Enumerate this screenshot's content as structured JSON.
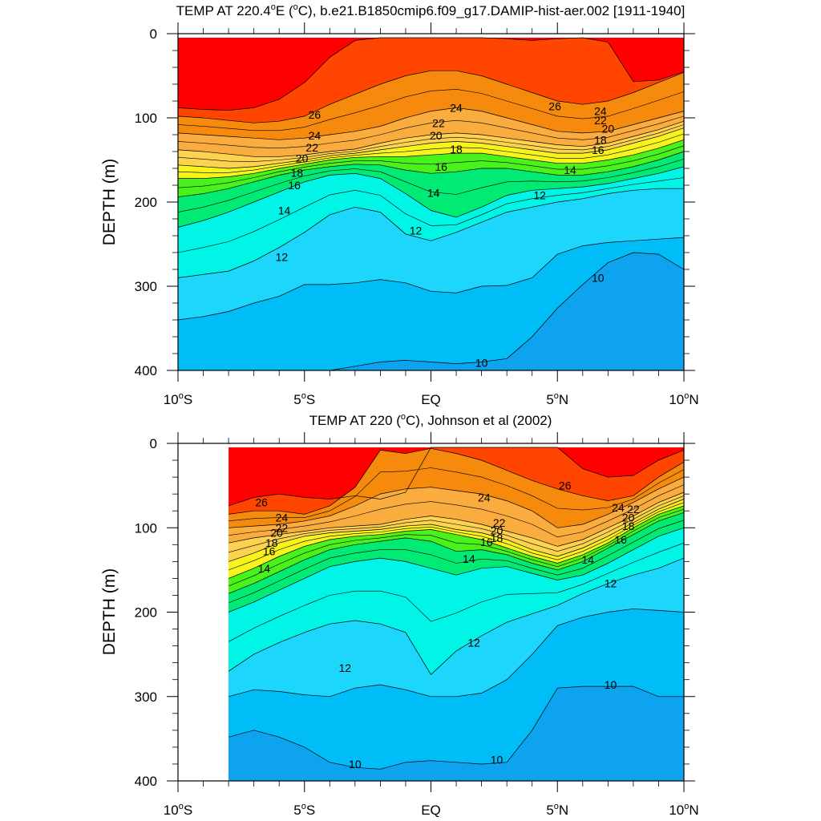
{
  "colors": {
    "c28": "#ff0000",
    "c27": "#ff4500",
    "c26": "#f58a0c",
    "c25": "#fa9a26",
    "c24": "#fbac3e",
    "c23": "#fcbf50",
    "c22": "#fdd24f",
    "c21": "#fde63c",
    "c20": "#f7f31c",
    "c19": "#c9f215",
    "c18": "#4af21c",
    "c17": "#0fdc1a",
    "c16": "#00ea74",
    "c15": "#00f3b5",
    "c14": "#00f5e6",
    "c13": "#30eafc",
    "c12": "#1cd6fb",
    "c11": "#00bdf8",
    "c10": "#0ea3ee",
    "c9": "#1b86ec",
    "c8": "#1a64ee",
    "background": "#ffffff",
    "axis": "#000000"
  },
  "chart_data": [
    {
      "type": "contour",
      "title_prefix": "TEMP AT 220.4",
      "title_degree": "o",
      "title_mid": "E (",
      "title_unit_deg": "o",
      "title_suffix": "C), b.e21.B1850cmip6.f09_g17.DAMIP-hist-aer.002 [1911-1940]",
      "xlabel": "",
      "ylabel": "DEPTH (m)",
      "xlim": [
        -10,
        10
      ],
      "ylim": [
        400,
        0
      ],
      "y_reversed": true,
      "x_ticks": [
        {
          "value": -10,
          "main": "10",
          "sup": "o",
          "tail": "S"
        },
        {
          "value": -5,
          "main": "5",
          "sup": "o",
          "tail": "S"
        },
        {
          "value": 0,
          "main": "EQ",
          "sup": "",
          "tail": ""
        },
        {
          "value": 5,
          "main": "5",
          "sup": "o",
          "tail": "N"
        },
        {
          "value": 10,
          "main": "10",
          "sup": "o",
          "tail": "N"
        }
      ],
      "y_ticks": [
        {
          "value": 0,
          "label": "0"
        },
        {
          "value": 100,
          "label": "100"
        },
        {
          "value": 200,
          "label": "200"
        },
        {
          "value": 300,
          "label": "300"
        },
        {
          "value": 400,
          "label": "400"
        }
      ],
      "x": [
        -10,
        -9,
        -8,
        -7,
        -6,
        -5,
        -4,
        -3,
        -2,
        -1,
        0,
        1,
        2,
        3,
        4,
        5,
        6,
        7,
        8,
        9,
        10
      ],
      "depth_of_isotherm": [
        {
          "t": 27,
          "y": [
            88,
            90,
            91,
            88,
            78,
            58,
            28,
            8,
            4,
            2,
            2,
            2,
            2,
            6,
            8,
            6,
            4,
            10,
            57,
            55,
            45
          ]
        },
        {
          "t": 26,
          "y": [
            98,
            100,
            103,
            106,
            104,
            98,
            84,
            72,
            60,
            50,
            44,
            44,
            50,
            60,
            70,
            80,
            84,
            80,
            70,
            58,
            46
          ]
        },
        {
          "t": 24,
          "y": [
            118,
            120,
            122,
            124,
            126,
            124,
            120,
            116,
            110,
            100,
            92,
            88,
            92,
            100,
            108,
            116,
            118,
            116,
            108,
            100,
            92
          ]
        },
        {
          "t": 22,
          "y": [
            138,
            140,
            143,
            146,
            146,
            144,
            140,
            137,
            130,
            124,
            120,
            118,
            120,
            124,
            128,
            132,
            134,
            130,
            122,
            114,
            104
          ]
        },
        {
          "t": 20,
          "y": [
            156,
            158,
            160,
            158,
            154,
            150,
            145,
            142,
            138,
            134,
            130,
            128,
            130,
            134,
            138,
            142,
            142,
            138,
            130,
            122,
            112
          ]
        },
        {
          "t": 18,
          "y": [
            172,
            172,
            170,
            166,
            160,
            155,
            150,
            147,
            146,
            146,
            144,
            142,
            142,
            146,
            150,
            154,
            154,
            150,
            144,
            136,
            126
          ]
        },
        {
          "t": 16,
          "y": [
            194,
            190,
            184,
            176,
            168,
            162,
            158,
            155,
            156,
            162,
            166,
            164,
            160,
            160,
            164,
            168,
            168,
            164,
            158,
            150,
            140
          ]
        },
        {
          "t": 14,
          "y": [
            230,
            222,
            212,
            200,
            188,
            176,
            168,
            166,
            172,
            190,
            210,
            218,
            206,
            192,
            186,
            184,
            182,
            178,
            172,
            166,
            158
          ]
        },
        {
          "t": 12,
          "y": [
            290,
            286,
            282,
            270,
            254,
            236,
            215,
            206,
            212,
            238,
            246,
            236,
            224,
            212,
            206,
            200,
            196,
            190,
            186,
            184,
            184
          ]
        },
        {
          "t": 11,
          "y": [
            340,
            336,
            330,
            320,
            312,
            298,
            298,
            296,
            292,
            296,
            306,
            308,
            300,
            299,
            290,
            262,
            252,
            248,
            246,
            244,
            242
          ]
        },
        {
          "t": 10,
          "y": [
            402,
            402,
            402,
            402,
            402,
            402,
            402,
            395,
            390,
            388,
            390,
            392,
            390,
            386,
            360,
            326,
            298,
            272,
            260,
            262,
            280
          ]
        }
      ],
      "contour_labels": [
        {
          "text": "26",
          "x": -4.6,
          "y": 96
        },
        {
          "text": "26",
          "x": 4.9,
          "y": 86
        },
        {
          "text": "24",
          "x": 1.0,
          "y": 88
        },
        {
          "text": "24",
          "x": -4.6,
          "y": 121
        },
        {
          "text": "24",
          "x": 6.7,
          "y": 92
        },
        {
          "text": "22",
          "x": 0.3,
          "y": 106
        },
        {
          "text": "22",
          "x": -4.7,
          "y": 135
        },
        {
          "text": "22",
          "x": 6.7,
          "y": 103
        },
        {
          "text": "20",
          "x": 0.2,
          "y": 121
        },
        {
          "text": "20",
          "x": -5.1,
          "y": 148
        },
        {
          "text": "20",
          "x": 7.0,
          "y": 113
        },
        {
          "text": "18",
          "x": 1.0,
          "y": 137
        },
        {
          "text": "18",
          "x": -5.3,
          "y": 165
        },
        {
          "text": "18",
          "x": 6.7,
          "y": 126
        },
        {
          "text": "16",
          "x": 0.4,
          "y": 158
        },
        {
          "text": "16",
          "x": -5.4,
          "y": 180
        },
        {
          "text": "16",
          "x": 6.6,
          "y": 138
        },
        {
          "text": "14",
          "x": 0.1,
          "y": 189
        },
        {
          "text": "14",
          "x": -5.8,
          "y": 210
        },
        {
          "text": "14",
          "x": 5.5,
          "y": 162
        },
        {
          "text": "12",
          "x": -0.6,
          "y": 234
        },
        {
          "text": "12",
          "x": -5.9,
          "y": 265
        },
        {
          "text": "12",
          "x": 4.3,
          "y": 192
        },
        {
          "text": "10",
          "x": 6.6,
          "y": 290
        },
        {
          "text": "10",
          "x": 2.0,
          "y": 391
        }
      ]
    },
    {
      "type": "contour",
      "title_prefix": "TEMP AT 220 (",
      "title_degree": "o",
      "title_mid": "",
      "title_unit_deg": "",
      "title_suffix": "C), Johnson et al (2002)",
      "xlabel": "",
      "ylabel": "DEPTH (m)",
      "xlim": [
        -10,
        10
      ],
      "ylim": [
        400,
        0
      ],
      "y_reversed": true,
      "data_x_start": -8,
      "x_ticks": [
        {
          "value": -10,
          "main": "10",
          "sup": "o",
          "tail": "S"
        },
        {
          "value": -5,
          "main": "5",
          "sup": "o",
          "tail": "S"
        },
        {
          "value": 0,
          "main": "EQ",
          "sup": "",
          "tail": ""
        },
        {
          "value": 5,
          "main": "5",
          "sup": "o",
          "tail": "N"
        },
        {
          "value": 10,
          "main": "10",
          "sup": "o",
          "tail": "N"
        }
      ],
      "y_ticks": [
        {
          "value": 0,
          "label": "0"
        },
        {
          "value": 100,
          "label": "100"
        },
        {
          "value": 200,
          "label": "200"
        },
        {
          "value": 300,
          "label": "300"
        },
        {
          "value": 400,
          "label": "400"
        }
      ],
      "x": [
        -8,
        -7,
        -6,
        -5,
        -4,
        -3,
        -2,
        -1,
        0,
        1,
        2,
        3,
        4,
        5,
        6,
        7,
        8,
        9,
        10
      ],
      "depth_of_isotherm": [
        {
          "t": 27,
          "y": [
            74,
            64,
            60,
            64,
            66,
            62,
            66,
            58,
            2,
            2,
            2,
            2,
            2,
            2,
            30,
            40,
            38,
            20,
            8
          ]
        },
        {
          "t": 26,
          "y": [
            84,
            80,
            80,
            84,
            74,
            52,
            8,
            12,
            6,
            12,
            20,
            32,
            44,
            54,
            62,
            68,
            62,
            40,
            22
          ]
        },
        {
          "t": 24,
          "y": [
            100,
            98,
            96,
            92,
            86,
            74,
            60,
            54,
            52,
            56,
            60,
            68,
            80,
            100,
            96,
            84,
            70,
            54,
            40
          ]
        },
        {
          "t": 22,
          "y": [
            118,
            112,
            108,
            104,
            100,
            98,
            96,
            90,
            86,
            90,
            96,
            104,
            112,
            122,
            114,
            100,
            86,
            70,
            58
          ]
        },
        {
          "t": 20,
          "y": [
            140,
            130,
            118,
            110,
            106,
            104,
            102,
            98,
            96,
            102,
            106,
            114,
            126,
            134,
            124,
            110,
            94,
            78,
            66
          ]
        },
        {
          "t": 18,
          "y": [
            160,
            148,
            134,
            122,
            114,
            110,
            108,
            104,
            102,
            108,
            114,
            124,
            134,
            142,
            132,
            118,
            100,
            84,
            74
          ]
        },
        {
          "t": 16,
          "y": [
            178,
            166,
            152,
            138,
            126,
            120,
            116,
            112,
            116,
            128,
            126,
            132,
            142,
            150,
            140,
            124,
            108,
            92,
            82
          ]
        },
        {
          "t": 14,
          "y": [
            200,
            188,
            174,
            160,
            146,
            140,
            136,
            140,
            148,
            156,
            148,
            146,
            154,
            162,
            156,
            142,
            126,
            110,
            100
          ]
        },
        {
          "t": 12,
          "y": [
            270,
            250,
            236,
            224,
            214,
            210,
            214,
            224,
            274,
            246,
            228,
            212,
            202,
            192,
            178,
            166,
            156,
            148,
            136
          ]
        },
        {
          "t": 11,
          "y": [
            300,
            292,
            294,
            298,
            300,
            290,
            286,
            292,
            300,
            300,
            296,
            280,
            250,
            216,
            206,
            200,
            196,
            198,
            200
          ]
        },
        {
          "t": 10,
          "y": [
            348,
            340,
            348,
            360,
            378,
            384,
            386,
            378,
            376,
            378,
            380,
            378,
            340,
            290,
            288,
            288,
            288,
            300,
            300
          ]
        }
      ],
      "contour_labels": [
        {
          "text": "26",
          "x": -6.7,
          "y": 70
        },
        {
          "text": "26",
          "x": 5.3,
          "y": 50
        },
        {
          "text": "24",
          "x": 2.1,
          "y": 64
        },
        {
          "text": "24",
          "x": -5.9,
          "y": 88
        },
        {
          "text": "24",
          "x": 7.4,
          "y": 76
        },
        {
          "text": "22",
          "x": 2.7,
          "y": 94
        },
        {
          "text": "22",
          "x": -5.9,
          "y": 100
        },
        {
          "text": "22",
          "x": 8.0,
          "y": 78
        },
        {
          "text": "20",
          "x": 2.6,
          "y": 103
        },
        {
          "text": "20",
          "x": -6.1,
          "y": 106
        },
        {
          "text": "20",
          "x": 7.8,
          "y": 88
        },
        {
          "text": "18",
          "x": 2.6,
          "y": 112
        },
        {
          "text": "18",
          "x": -6.3,
          "y": 118
        },
        {
          "text": "18",
          "x": 7.8,
          "y": 98
        },
        {
          "text": "16",
          "x": 2.2,
          "y": 117
        },
        {
          "text": "16",
          "x": -6.4,
          "y": 128
        },
        {
          "text": "16",
          "x": 7.5,
          "y": 114
        },
        {
          "text": "14",
          "x": 1.5,
          "y": 137
        },
        {
          "text": "14",
          "x": -6.6,
          "y": 148
        },
        {
          "text": "14",
          "x": 6.2,
          "y": 138
        },
        {
          "text": "12",
          "x": 1.7,
          "y": 236
        },
        {
          "text": "12",
          "x": -3.4,
          "y": 266
        },
        {
          "text": "12",
          "x": 7.1,
          "y": 166
        },
        {
          "text": "10",
          "x": 7.1,
          "y": 286
        },
        {
          "text": "10",
          "x": 2.6,
          "y": 375
        },
        {
          "text": "10",
          "x": -3.0,
          "y": 380
        }
      ]
    }
  ]
}
